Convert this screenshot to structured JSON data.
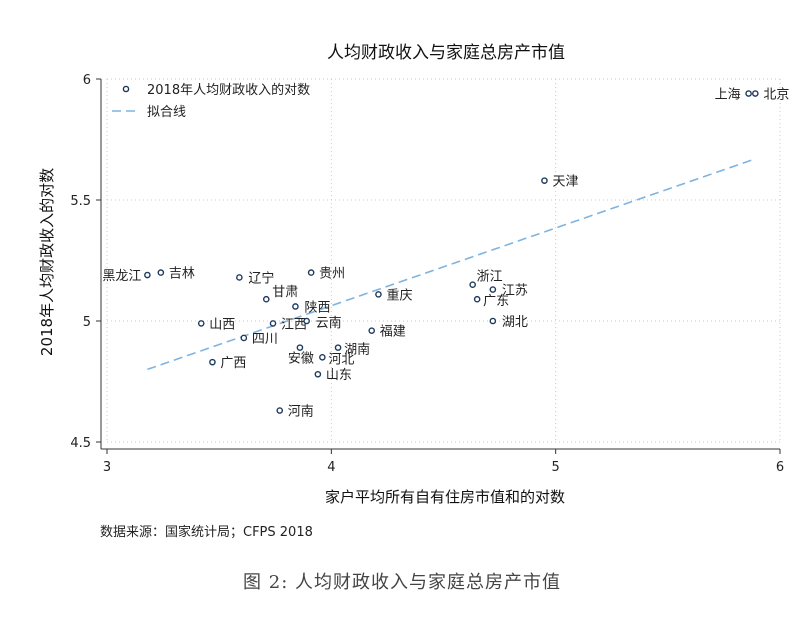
{
  "chart_data": {
    "type": "scatter",
    "title": "人均财政收入与家庭总房产市值",
    "xlabel": "家户平均所有自有住房市值和的对数",
    "ylabel": "2018年人均财政收入的对数",
    "xlim": [
      3,
      6
    ],
    "ylim": [
      4.5,
      6
    ],
    "x_ticks": [
      "3",
      "4",
      "5",
      "6"
    ],
    "y_ticks": [
      "4.5",
      "5",
      "5.5",
      "6"
    ],
    "grid": true,
    "legend_position": "top-left",
    "series": [
      {
        "name": "2018年人均财政收入的对数",
        "color": "#1f3a5f",
        "points": [
          {
            "label": "上海",
            "x": 5.86,
            "y": 5.94
          },
          {
            "label": "北京",
            "x": 5.89,
            "y": 5.94
          },
          {
            "label": "天津",
            "x": 4.95,
            "y": 5.58
          },
          {
            "label": "黑龙江",
            "x": 3.18,
            "y": 5.19
          },
          {
            "label": "吉林",
            "x": 3.24,
            "y": 5.2
          },
          {
            "label": "辽宁",
            "x": 3.59,
            "y": 5.18
          },
          {
            "label": "贵州",
            "x": 3.91,
            "y": 5.2
          },
          {
            "label": "甘肃",
            "x": 3.71,
            "y": 5.09
          },
          {
            "label": "陕西",
            "x": 3.84,
            "y": 5.06
          },
          {
            "label": "重庆",
            "x": 4.21,
            "y": 5.11
          },
          {
            "label": "浙江",
            "x": 4.63,
            "y": 5.15
          },
          {
            "label": "江苏",
            "x": 4.72,
            "y": 5.13
          },
          {
            "label": "广东",
            "x": 4.65,
            "y": 5.09
          },
          {
            "label": "湖北",
            "x": 4.72,
            "y": 5.0
          },
          {
            "label": "山西",
            "x": 3.42,
            "y": 4.99
          },
          {
            "label": "江西",
            "x": 3.74,
            "y": 4.99
          },
          {
            "label": "云南",
            "x": 3.89,
            "y": 5.0
          },
          {
            "label": "福建",
            "x": 4.18,
            "y": 4.96
          },
          {
            "label": "四川",
            "x": 3.61,
            "y": 4.93
          },
          {
            "label": "湖南",
            "x": 4.03,
            "y": 4.89
          },
          {
            "label": "安徽",
            "x": 3.86,
            "y": 4.89
          },
          {
            "label": "河北",
            "x": 3.96,
            "y": 4.85
          },
          {
            "label": "广西",
            "x": 3.47,
            "y": 4.83
          },
          {
            "label": "山东",
            "x": 3.94,
            "y": 4.78
          },
          {
            "label": "河南",
            "x": 3.77,
            "y": 4.63
          }
        ]
      },
      {
        "name": "拟合线",
        "type": "line",
        "style": "dashed",
        "color": "#7fb3e0",
        "x": [
          3.18,
          5.89
        ],
        "y": [
          4.8,
          5.67
        ]
      }
    ]
  },
  "source_text": "数据来源：国家统计局；CFPS 2018",
  "caption": "图 2:  人均财政收入与家庭总房产市值"
}
